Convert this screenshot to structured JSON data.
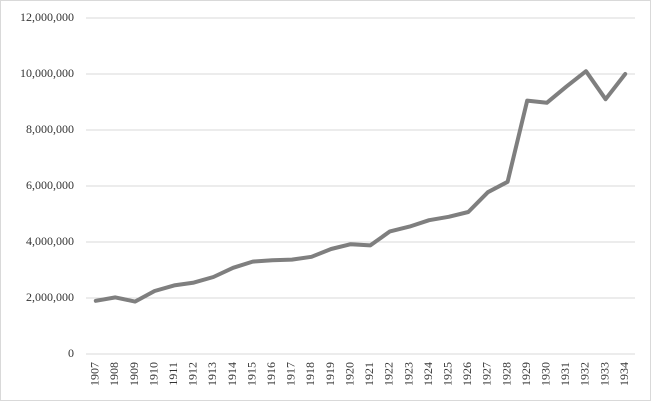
{
  "chart_data": {
    "type": "line",
    "categories": [
      "1907",
      "1908",
      "1909",
      "1910",
      "1911",
      "1912",
      "1913",
      "1914",
      "1915",
      "1916",
      "1917",
      "1918",
      "1919",
      "1920",
      "1921",
      "1922",
      "1923",
      "1924",
      "1925",
      "1926",
      "1927",
      "1928",
      "1929",
      "1930",
      "1931",
      "1932",
      "1933",
      "1934"
    ],
    "values": [
      1900000,
      2020000,
      1870000,
      2250000,
      2450000,
      2550000,
      2750000,
      3080000,
      3300000,
      3350000,
      3370000,
      3470000,
      3750000,
      3920000,
      3880000,
      4380000,
      4550000,
      4780000,
      4900000,
      5070000,
      5780000,
      6150000,
      9050000,
      8970000,
      9550000,
      10100000,
      9100000,
      10000000
    ],
    "color": "#7f7f7f",
    "ylim": [
      0,
      12000000
    ],
    "yticks": [
      0,
      {
        "value": 2000000,
        "label": "2,000,000"
      },
      {
        "value": 4000000,
        "label": "4,000,000"
      },
      {
        "value": 6000000,
        "label": "6,000,000"
      },
      {
        "value": 8000000,
        "label": "8,000,000"
      },
      {
        "value": 10000000,
        "label": "10,000,000"
      },
      {
        "value": 12000000,
        "label": "12,000,000"
      }
    ],
    "grid": true
  }
}
